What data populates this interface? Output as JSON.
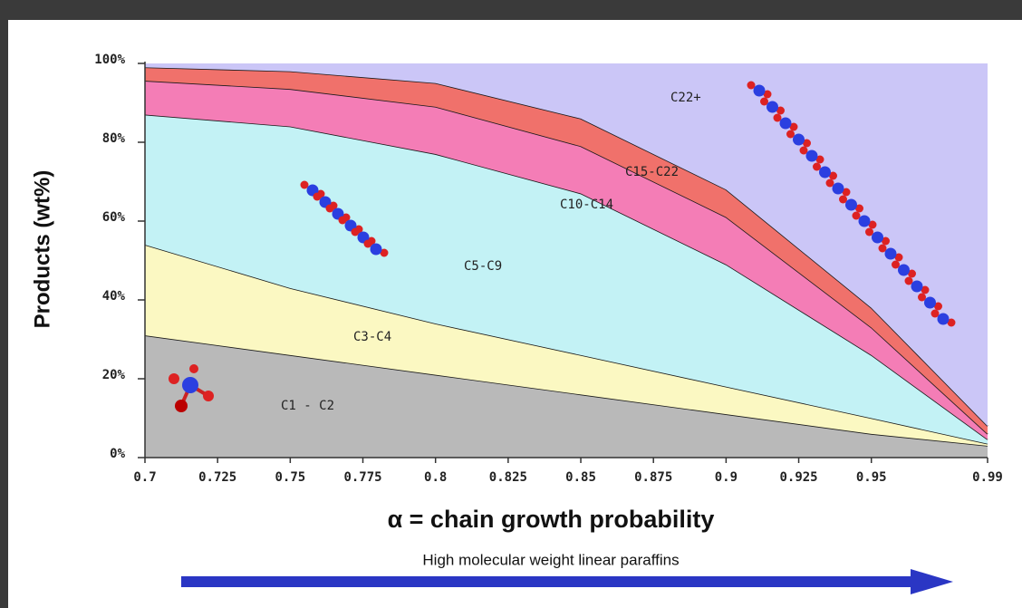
{
  "chart_data": {
    "type": "stacked-area",
    "ylabel": "Products (wt%)",
    "xlabel": "α = chain growth probability",
    "annotation": "High molecular weight linear paraffins",
    "x": [
      0.7,
      0.75,
      0.8,
      0.85,
      0.9,
      0.95,
      0.99
    ],
    "series": [
      {
        "name": "C1 - C2",
        "color": "#b9b9b9",
        "values": [
          31,
          26,
          21,
          16,
          11,
          6,
          3
        ]
      },
      {
        "name": "C3-C4",
        "color": "#fbf8c2",
        "values": [
          23,
          17,
          13,
          10,
          7,
          4,
          0.5
        ]
      },
      {
        "name": "C5-C9",
        "color": "#c3f2f5",
        "values": [
          33,
          41,
          43,
          41,
          31,
          16,
          1.1
        ]
      },
      {
        "name": "C10-C14",
        "color": "#f47db6",
        "values": [
          8.6,
          9.5,
          12,
          12,
          12,
          7,
          1.4
        ]
      },
      {
        "name": "C15-C22",
        "color": "#f0716b",
        "values": [
          3.4,
          4.5,
          6,
          7,
          7,
          5,
          2
        ]
      },
      {
        "name": "C22+",
        "color": "#cbc6f7",
        "values": [
          1,
          2,
          5,
          14,
          32,
          62,
          92
        ]
      }
    ],
    "xlim": [
      0.7,
      0.99
    ],
    "xticks": [
      0.7,
      0.725,
      0.75,
      0.775,
      0.8,
      0.825,
      0.85,
      0.875,
      0.9,
      0.925,
      0.95,
      0.99
    ],
    "ylim": [
      0,
      100
    ],
    "yticks": [
      {
        "value": 0,
        "label": "0%"
      },
      {
        "value": 20,
        "label": "20%"
      },
      {
        "value": 40,
        "label": "40%"
      },
      {
        "value": 60,
        "label": "60%"
      },
      {
        "value": 80,
        "label": "80%"
      },
      {
        "value": 100,
        "label": "100%"
      }
    ]
  }
}
